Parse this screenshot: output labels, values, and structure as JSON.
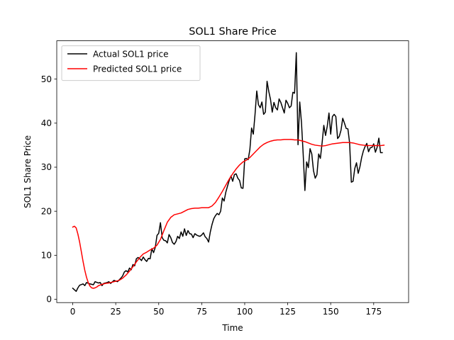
{
  "chart_data": {
    "type": "line",
    "title": "SOL1 Share Price",
    "xlabel": "Time",
    "ylabel": "SOL1 Share Price",
    "xlim": [
      -9.3,
      195.3
    ],
    "ylim": [
      -0.75,
      58.7
    ],
    "x_ticks": [
      0,
      25,
      50,
      75,
      100,
      125,
      150,
      175
    ],
    "y_ticks": [
      0,
      10,
      20,
      30,
      40,
      50
    ],
    "grid": false,
    "legend_position": "top-left",
    "series": [
      {
        "name": "Actual SOL1 price",
        "color": "#000000",
        "points": [
          [
            0,
            2.5
          ],
          [
            2,
            1.8
          ],
          [
            3,
            2.6
          ],
          [
            4,
            3.2
          ],
          [
            6,
            3.5
          ],
          [
            7,
            3.1
          ],
          [
            8,
            3.8
          ],
          [
            10,
            3.5
          ],
          [
            12,
            3.3
          ],
          [
            13,
            4.0
          ],
          [
            15,
            3.7
          ],
          [
            16,
            3.8
          ],
          [
            17,
            3.1
          ],
          [
            18,
            3.6
          ],
          [
            20,
            3.8
          ],
          [
            21,
            4.0
          ],
          [
            22,
            3.6
          ],
          [
            24,
            4.3
          ],
          [
            26,
            4.0
          ],
          [
            28,
            4.8
          ],
          [
            29,
            5.3
          ],
          [
            30,
            6.2
          ],
          [
            31,
            6.5
          ],
          [
            32,
            6.2
          ],
          [
            33,
            7.1
          ],
          [
            34,
            6.7
          ],
          [
            35,
            7.9
          ],
          [
            36,
            7.6
          ],
          [
            37,
            9.2
          ],
          [
            38,
            9.5
          ],
          [
            39,
            9.2
          ],
          [
            40,
            8.8
          ],
          [
            41,
            9.6
          ],
          [
            42,
            9.0
          ],
          [
            43,
            8.6
          ],
          [
            44,
            9.3
          ],
          [
            45,
            9.2
          ],
          [
            46,
            11.5
          ],
          [
            47,
            10.6
          ],
          [
            48,
            11.8
          ],
          [
            49,
            14.5
          ],
          [
            50,
            15.0
          ],
          [
            51,
            17.4
          ],
          [
            52,
            14.0
          ],
          [
            53,
            13.4
          ],
          [
            54,
            13.3
          ],
          [
            55,
            12.8
          ],
          [
            56,
            14.7
          ],
          [
            57,
            14.0
          ],
          [
            58,
            12.9
          ],
          [
            59,
            12.5
          ],
          [
            60,
            13.1
          ],
          [
            61,
            14.3
          ],
          [
            62,
            13.8
          ],
          [
            63,
            15.3
          ],
          [
            64,
            14.3
          ],
          [
            65,
            16.0
          ],
          [
            66,
            14.5
          ],
          [
            67,
            15.6
          ],
          [
            68,
            14.9
          ],
          [
            69,
            14.8
          ],
          [
            70,
            14.0
          ],
          [
            71,
            14.9
          ],
          [
            72,
            14.6
          ],
          [
            73,
            14.4
          ],
          [
            74,
            14.3
          ],
          [
            75,
            14.6
          ],
          [
            76,
            15.1
          ],
          [
            77,
            14.2
          ],
          [
            78,
            13.8
          ],
          [
            79,
            13.0
          ],
          [
            80,
            15.3
          ],
          [
            81,
            17.0
          ],
          [
            82,
            18.3
          ],
          [
            83,
            19.0
          ],
          [
            84,
            19.5
          ],
          [
            85,
            19.2
          ],
          [
            86,
            20.0
          ],
          [
            87,
            23.0
          ],
          [
            88,
            22.3
          ],
          [
            89,
            24.3
          ],
          [
            90,
            25.7
          ],
          [
            91,
            27.0
          ],
          [
            92,
            28.0
          ],
          [
            93,
            26.8
          ],
          [
            94,
            28.3
          ],
          [
            95,
            28.5
          ],
          [
            96,
            27.5
          ],
          [
            97,
            27.0
          ],
          [
            98,
            25.3
          ],
          [
            99,
            25.2
          ],
          [
            100,
            31.9
          ],
          [
            101,
            32.0
          ],
          [
            102,
            31.7
          ],
          [
            103,
            34.0
          ],
          [
            104,
            38.9
          ],
          [
            105,
            37.5
          ],
          [
            106,
            42.0
          ],
          [
            107,
            47.3
          ],
          [
            108,
            44.2
          ],
          [
            109,
            43.5
          ],
          [
            110,
            44.8
          ],
          [
            111,
            42.0
          ],
          [
            112,
            42.5
          ],
          [
            113,
            49.5
          ],
          [
            114,
            47.2
          ],
          [
            115,
            45.4
          ],
          [
            116,
            42.5
          ],
          [
            117,
            44.7
          ],
          [
            118,
            43.5
          ],
          [
            119,
            43.0
          ],
          [
            120,
            45.5
          ],
          [
            121,
            44.7
          ],
          [
            122,
            43.5
          ],
          [
            123,
            42.3
          ],
          [
            124,
            45.2
          ],
          [
            125,
            44.5
          ],
          [
            126,
            43.5
          ],
          [
            127,
            43.9
          ],
          [
            128,
            47.0
          ],
          [
            129,
            46.8
          ],
          [
            130,
            56.0
          ],
          [
            131,
            35.1
          ],
          [
            132,
            44.8
          ],
          [
            133,
            40.2
          ],
          [
            134,
            33.0
          ],
          [
            135,
            24.7
          ],
          [
            136,
            31.2
          ],
          [
            137,
            29.9
          ],
          [
            138,
            34.2
          ],
          [
            139,
            33.0
          ],
          [
            140,
            29.2
          ],
          [
            141,
            27.5
          ],
          [
            142,
            28.3
          ],
          [
            143,
            33.0
          ],
          [
            144,
            32.0
          ],
          [
            145,
            35.5
          ],
          [
            146,
            39.5
          ],
          [
            147,
            37.2
          ],
          [
            148,
            39.3
          ],
          [
            149,
            42.3
          ],
          [
            150,
            37.5
          ],
          [
            151,
            41.5
          ],
          [
            152,
            42.0
          ],
          [
            153,
            41.5
          ],
          [
            154,
            36.5
          ],
          [
            155,
            37.0
          ],
          [
            156,
            38.4
          ],
          [
            157,
            41.1
          ],
          [
            158,
            40.0
          ],
          [
            159,
            38.8
          ],
          [
            160,
            38.7
          ],
          [
            161,
            35.5
          ],
          [
            162,
            26.6
          ],
          [
            163,
            26.8
          ],
          [
            164,
            29.7
          ],
          [
            165,
            31.0
          ],
          [
            166,
            28.6
          ],
          [
            167,
            30.1
          ],
          [
            168,
            32.2
          ],
          [
            169,
            33.7
          ],
          [
            170,
            34.7
          ],
          [
            171,
            35.4
          ],
          [
            172,
            33.5
          ],
          [
            173,
            34.4
          ],
          [
            174,
            34.5
          ],
          [
            175,
            35.3
          ],
          [
            176,
            33.4
          ],
          [
            177,
            34.5
          ],
          [
            178,
            36.6
          ],
          [
            179,
            33.3
          ],
          [
            180,
            33.3
          ]
        ]
      },
      {
        "name": "Predicted SOL1 price",
        "color": "#ff0000",
        "points": [
          [
            0,
            16.4
          ],
          [
            1,
            16.6
          ],
          [
            2,
            16.2
          ],
          [
            3,
            14.8
          ],
          [
            4,
            13.0
          ],
          [
            5,
            10.8
          ],
          [
            6,
            8.6
          ],
          [
            7,
            6.6
          ],
          [
            8,
            5.0
          ],
          [
            9,
            3.8
          ],
          [
            10,
            3.0
          ],
          [
            11,
            2.6
          ],
          [
            12,
            2.5
          ],
          [
            13,
            2.6
          ],
          [
            14,
            2.8
          ],
          [
            15,
            3.1
          ],
          [
            17,
            3.4
          ],
          [
            19,
            3.6
          ],
          [
            21,
            3.7
          ],
          [
            23,
            3.9
          ],
          [
            25,
            4.1
          ],
          [
            27,
            4.3
          ],
          [
            29,
            4.8
          ],
          [
            31,
            5.5
          ],
          [
            33,
            6.4
          ],
          [
            35,
            7.4
          ],
          [
            37,
            8.5
          ],
          [
            39,
            9.5
          ],
          [
            41,
            10.3
          ],
          [
            43,
            10.7
          ],
          [
            45,
            11.2
          ],
          [
            47,
            11.6
          ],
          [
            49,
            12.3
          ],
          [
            51,
            13.6
          ],
          [
            53,
            15.6
          ],
          [
            55,
            17.5
          ],
          [
            57,
            18.6
          ],
          [
            59,
            19.2
          ],
          [
            61,
            19.4
          ],
          [
            63,
            19.6
          ],
          [
            65,
            20.0
          ],
          [
            67,
            20.4
          ],
          [
            69,
            20.6
          ],
          [
            71,
            20.7
          ],
          [
            73,
            20.7
          ],
          [
            75,
            20.8
          ],
          [
            77,
            20.8
          ],
          [
            79,
            20.8
          ],
          [
            81,
            21.2
          ],
          [
            83,
            22.0
          ],
          [
            85,
            23.2
          ],
          [
            87,
            24.5
          ],
          [
            89,
            25.9
          ],
          [
            91,
            27.3
          ],
          [
            93,
            28.5
          ],
          [
            95,
            29.6
          ],
          [
            97,
            30.5
          ],
          [
            99,
            31.2
          ],
          [
            101,
            31.6
          ],
          [
            103,
            32.2
          ],
          [
            105,
            33.0
          ],
          [
            107,
            33.8
          ],
          [
            109,
            34.6
          ],
          [
            111,
            35.2
          ],
          [
            113,
            35.6
          ],
          [
            115,
            35.9
          ],
          [
            117,
            36.1
          ],
          [
            119,
            36.2
          ],
          [
            121,
            36.2
          ],
          [
            123,
            36.3
          ],
          [
            125,
            36.3
          ],
          [
            127,
            36.3
          ],
          [
            129,
            36.2
          ],
          [
            131,
            36.2
          ],
          [
            133,
            36.0
          ],
          [
            135,
            35.8
          ],
          [
            137,
            35.5
          ],
          [
            139,
            35.2
          ],
          [
            141,
            35.0
          ],
          [
            143,
            34.9
          ],
          [
            145,
            34.8
          ],
          [
            147,
            34.9
          ],
          [
            149,
            35.1
          ],
          [
            151,
            35.3
          ],
          [
            153,
            35.4
          ],
          [
            155,
            35.5
          ],
          [
            157,
            35.6
          ],
          [
            159,
            35.6
          ],
          [
            161,
            35.6
          ],
          [
            163,
            35.5
          ],
          [
            165,
            35.3
          ],
          [
            167,
            35.1
          ],
          [
            169,
            35.0
          ],
          [
            171,
            34.9
          ],
          [
            173,
            34.9
          ],
          [
            175,
            34.9
          ],
          [
            177,
            34.9
          ],
          [
            179,
            34.9
          ],
          [
            181,
            35.0
          ]
        ]
      }
    ]
  }
}
